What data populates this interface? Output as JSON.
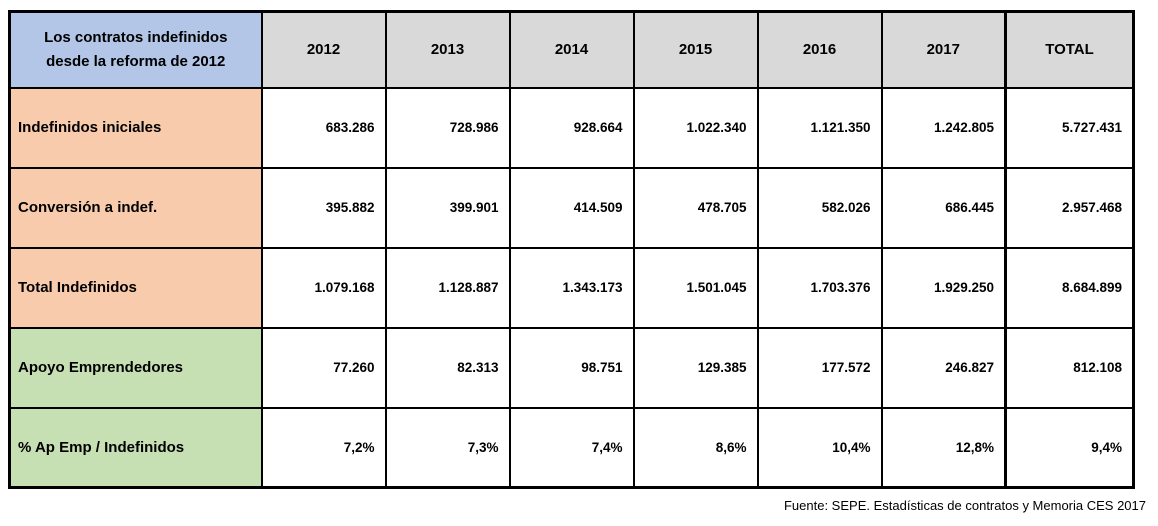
{
  "table": {
    "title": "Los contratos indefinidos desde la reforma de 2012",
    "columns": [
      "2012",
      "2013",
      "2014",
      "2015",
      "2016",
      "2017",
      "TOTAL"
    ],
    "rows": [
      {
        "label": "Indefinidos iniciales",
        "group": "orange",
        "values": [
          "683.286",
          "728.986",
          "928.664",
          "1.022.340",
          "1.121.350",
          "1.242.805",
          "5.727.431"
        ]
      },
      {
        "label": "Conversión a indef.",
        "group": "orange",
        "values": [
          "395.882",
          "399.901",
          "414.509",
          "478.705",
          "582.026",
          "686.445",
          "2.957.468"
        ]
      },
      {
        "label": "Total Indefinidos",
        "group": "orange",
        "values": [
          "1.079.168",
          "1.128.887",
          "1.343.173",
          "1.501.045",
          "1.703.376",
          "1.929.250",
          "8.684.899"
        ]
      },
      {
        "label": "Apoyo Emprendedores",
        "group": "green",
        "values": [
          "77.260",
          "82.313",
          "98.751",
          "129.385",
          "177.572",
          "246.827",
          "812.108"
        ]
      },
      {
        "label": "% Ap Emp / Indefinidos",
        "group": "green",
        "values": [
          "7,2%",
          "7,3%",
          "7,4%",
          "8,6%",
          "10,4%",
          "12,8%",
          "9,4%"
        ]
      }
    ]
  },
  "footer": {
    "source": "Fuente: SEPE. Estadísticas de contratos y Memoria CES 2017"
  },
  "colors": {
    "header_blue": "#b4c6e7",
    "header_gray": "#d9d9d9",
    "row_orange": "#f8cbad",
    "row_green": "#c6e0b4",
    "border": "#000000"
  },
  "chart_data": {
    "type": "table",
    "title": "Los contratos indefinidos desde la reforma de 2012",
    "columns": [
      "2012",
      "2013",
      "2014",
      "2015",
      "2016",
      "2017",
      "TOTAL"
    ],
    "rows": [
      {
        "label": "Indefinidos iniciales",
        "values": [
          683286,
          728986,
          928664,
          1022340,
          1121350,
          1242805,
          5727431
        ],
        "unit": "contracts"
      },
      {
        "label": "Conversión a indef.",
        "values": [
          395882,
          399901,
          414509,
          478705,
          582026,
          686445,
          2957468
        ],
        "unit": "contracts"
      },
      {
        "label": "Total Indefinidos",
        "values": [
          1079168,
          1128887,
          1343173,
          1501045,
          1703376,
          1929250,
          8684899
        ],
        "unit": "contracts"
      },
      {
        "label": "Apoyo Emprendedores",
        "values": [
          77260,
          82313,
          98751,
          129385,
          177572,
          246827,
          812108
        ],
        "unit": "contracts"
      },
      {
        "label": "% Ap Emp / Indefinidos",
        "values": [
          7.2,
          7.3,
          7.4,
          8.6,
          10.4,
          12.8,
          9.4
        ],
        "unit": "%"
      }
    ],
    "source": "Fuente: SEPE. Estadísticas de contratos y Memoria CES 2017"
  }
}
